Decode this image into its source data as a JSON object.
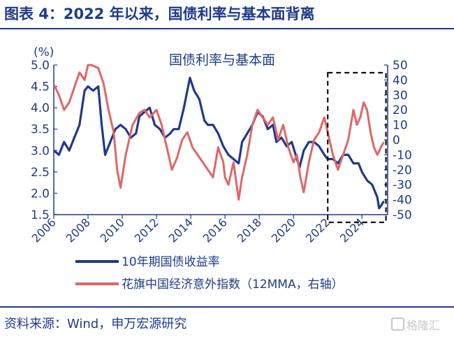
{
  "header": {
    "title": "图表 4：2022 年以来，国债利率与基本面背离"
  },
  "footer": {
    "source": "资料来源：Wind，申万宏源研究",
    "watermark": "格隆汇"
  },
  "chart_data": {
    "type": "line",
    "title": "国债利率与基本面",
    "ylabel": "(%)",
    "ylim": [
      1.5,
      5.0
    ],
    "y_ticks": [
      "5.0",
      "4.5",
      "4.0",
      "3.5",
      "3.0",
      "2.5",
      "2.0",
      "1.5"
    ],
    "y2lim": [
      -50,
      50
    ],
    "y2_ticks": [
      "50",
      "40",
      "30",
      "20",
      "10",
      "0",
      "-10",
      "-20",
      "-30",
      "-40",
      "-50"
    ],
    "xlim": [
      2006,
      2025.5
    ],
    "x_ticks": [
      "2006",
      "2008",
      "2010",
      "2012",
      "2014",
      "2016",
      "2018",
      "2020",
      "2022",
      "2024"
    ],
    "legend_position": "bottom",
    "grid": false,
    "highlight_box": {
      "x": [
        2022,
        2025.4
      ]
    },
    "series": [
      {
        "name": "10年期国债收益率",
        "axis": "left",
        "color": "#1f3a8a",
        "x": [
          2006.0,
          2006.3,
          2006.6,
          2006.9,
          2007.2,
          2007.5,
          2007.8,
          2008.0,
          2008.3,
          2008.6,
          2008.8,
          2009.0,
          2009.3,
          2009.6,
          2009.9,
          2010.2,
          2010.5,
          2010.8,
          2011.0,
          2011.3,
          2011.6,
          2011.9,
          2012.2,
          2012.5,
          2012.8,
          2013.0,
          2013.3,
          2013.6,
          2013.8,
          2013.95,
          2014.2,
          2014.5,
          2014.8,
          2015.0,
          2015.3,
          2015.6,
          2015.9,
          2016.2,
          2016.5,
          2016.8,
          2017.0,
          2017.3,
          2017.6,
          2017.9,
          2018.2,
          2018.5,
          2018.8,
          2019.0,
          2019.3,
          2019.6,
          2019.9,
          2020.2,
          2020.35,
          2020.6,
          2020.9,
          2021.2,
          2021.5,
          2021.8,
          2022.0,
          2022.3,
          2022.6,
          2022.9,
          2023.2,
          2023.5,
          2023.8,
          2024.0,
          2024.3,
          2024.6,
          2024.9,
          2025.0,
          2025.1,
          2025.25
        ],
        "values": [
          3.0,
          2.9,
          3.2,
          3.0,
          3.3,
          3.6,
          4.4,
          4.5,
          4.4,
          4.5,
          3.6,
          2.9,
          3.2,
          3.5,
          3.6,
          3.5,
          3.3,
          3.4,
          3.8,
          3.9,
          4.0,
          3.6,
          3.5,
          3.3,
          3.4,
          3.5,
          3.5,
          4.0,
          4.4,
          4.7,
          4.4,
          4.2,
          3.7,
          3.6,
          3.6,
          3.4,
          3.1,
          2.9,
          2.8,
          2.7,
          3.2,
          3.4,
          3.6,
          3.9,
          3.8,
          3.5,
          3.6,
          3.2,
          3.3,
          3.1,
          3.2,
          2.8,
          2.6,
          3.0,
          3.2,
          3.2,
          3.1,
          2.9,
          2.8,
          2.8,
          2.7,
          2.9,
          2.9,
          2.7,
          2.7,
          2.5,
          2.3,
          2.2,
          1.9,
          1.65,
          1.7,
          1.8
        ]
      },
      {
        "name": "花旗中国经济意外指数（12MMA，右轴）",
        "axis": "right",
        "color": "#e06666",
        "x": [
          2006.0,
          2006.3,
          2006.6,
          2006.9,
          2007.2,
          2007.5,
          2007.8,
          2008.0,
          2008.2,
          2008.6,
          2008.9,
          2009.2,
          2009.5,
          2009.7,
          2009.9,
          2010.2,
          2010.6,
          2011.0,
          2011.3,
          2011.6,
          2012.0,
          2012.3,
          2012.6,
          2012.9,
          2013.2,
          2013.5,
          2013.8,
          2014.1,
          2014.4,
          2014.7,
          2015.0,
          2015.3,
          2015.6,
          2015.9,
          2016.0,
          2016.2,
          2016.5,
          2016.8,
          2017.0,
          2017.3,
          2017.6,
          2017.9,
          2018.2,
          2018.5,
          2018.8,
          2019.1,
          2019.4,
          2019.7,
          2020.0,
          2020.2,
          2020.4,
          2020.6,
          2020.9,
          2021.2,
          2021.5,
          2021.8,
          2022.0,
          2022.3,
          2022.6,
          2022.9,
          2023.2,
          2023.5,
          2023.7,
          2023.9,
          2024.1,
          2024.3,
          2024.5,
          2024.7,
          2024.9,
          2025.1,
          2025.25
        ],
        "values": [
          37,
          30,
          20,
          25,
          35,
          45,
          40,
          50,
          50,
          48,
          38,
          20,
          5,
          -20,
          -32,
          -10,
          10,
          18,
          20,
          15,
          20,
          10,
          -5,
          -20,
          -12,
          0,
          5,
          -5,
          -10,
          -15,
          -20,
          -25,
          -5,
          -15,
          -25,
          -30,
          -15,
          -40,
          -25,
          -10,
          10,
          20,
          15,
          10,
          15,
          0,
          10,
          -5,
          -15,
          -10,
          -25,
          -35,
          -15,
          0,
          5,
          15,
          5,
          -10,
          -20,
          -10,
          0,
          20,
          10,
          15,
          25,
          20,
          5,
          -5,
          -10,
          -5,
          -2
        ]
      }
    ]
  }
}
